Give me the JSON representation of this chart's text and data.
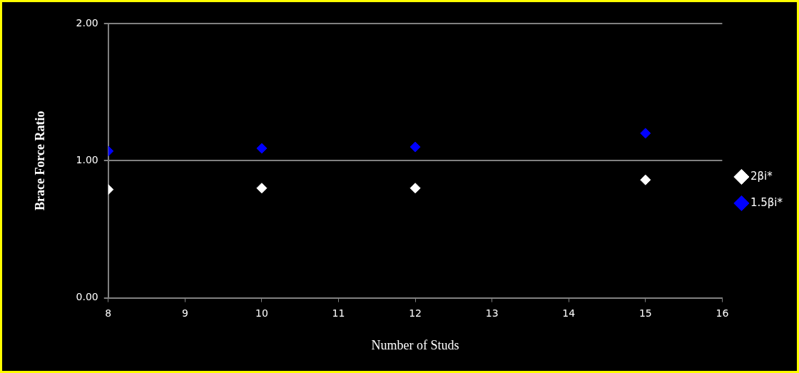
{
  "chart_data": {
    "type": "scatter",
    "xlabel": "Number of Studs",
    "ylabel": "Brace Force Ratio",
    "x": [
      8,
      10,
      12,
      15
    ],
    "series": [
      {
        "name": "2βi*",
        "color": "#ffffff",
        "values": [
          0.79,
          0.8,
          0.8,
          0.86
        ]
      },
      {
        "name": "1.5βi*",
        "color": "#0000ff",
        "values": [
          1.07,
          1.09,
          1.1,
          1.2
        ]
      }
    ],
    "xlim": [
      8,
      16
    ],
    "xticks": [
      8,
      9,
      10,
      11,
      12,
      13,
      14,
      15,
      16
    ],
    "ylim": [
      0,
      2
    ],
    "yticks": [
      {
        "value": 0,
        "label": "0.00"
      },
      {
        "value": 1,
        "label": "1.00"
      },
      {
        "value": 2,
        "label": "2.00"
      }
    ],
    "grid": "y",
    "legend": "right",
    "marker": "diamond"
  }
}
